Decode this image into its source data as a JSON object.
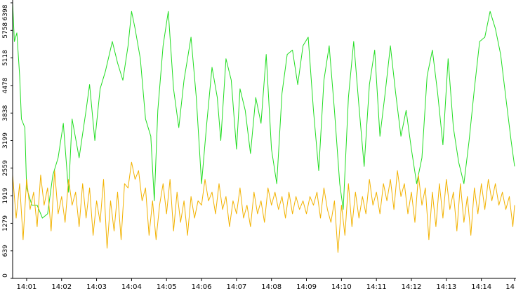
{
  "chart_data": {
    "type": "line",
    "title": "",
    "xlabel": "",
    "ylabel": "",
    "ylim": [
      0,
      6398
    ],
    "xlim_minutes": [
      0.6,
      14.95
    ],
    "grid": false,
    "legend": "none",
    "y_ticks": [
      "0",
      "639",
      "1279",
      "1919",
      "2559",
      "3199",
      "3838",
      "4478",
      "5118",
      "5758",
      "6398"
    ],
    "x_ticks": [
      {
        "t": 1,
        "label": "14:01"
      },
      {
        "t": 2,
        "label": "14:02"
      },
      {
        "t": 3,
        "label": "14:03"
      },
      {
        "t": 4,
        "label": "14:04"
      },
      {
        "t": 5,
        "label": "14:05"
      },
      {
        "t": 6,
        "label": "14:06"
      },
      {
        "t": 7,
        "label": "14:07"
      },
      {
        "t": 8,
        "label": "14:08"
      },
      {
        "t": 9,
        "label": "14:09"
      },
      {
        "t": 10,
        "label": "14:10"
      },
      {
        "t": 11,
        "label": "14:11"
      },
      {
        "t": 12,
        "label": "14:12"
      },
      {
        "t": 13,
        "label": "14:13"
      },
      {
        "t": 14,
        "label": "14:14"
      },
      {
        "t": 14.95,
        "label": "14"
      }
    ],
    "series": [
      {
        "color": "#22dd22",
        "values": [
          {
            "t": 0.6,
            "y": 6398
          },
          {
            "t": 0.65,
            "y": 5500
          },
          {
            "t": 0.72,
            "y": 5700
          },
          {
            "t": 0.8,
            "y": 4700
          },
          {
            "t": 0.85,
            "y": 3700
          },
          {
            "t": 0.95,
            "y": 3500
          },
          {
            "t": 1.0,
            "y": 2100
          },
          {
            "t": 1.15,
            "y": 1700
          },
          {
            "t": 1.3,
            "y": 1700
          },
          {
            "t": 1.45,
            "y": 1400
          },
          {
            "t": 1.6,
            "y": 1500
          },
          {
            "t": 1.75,
            "y": 2400
          },
          {
            "t": 1.9,
            "y": 2800
          },
          {
            "t": 2.05,
            "y": 3600
          },
          {
            "t": 2.2,
            "y": 2000
          },
          {
            "t": 2.3,
            "y": 3700
          },
          {
            "t": 2.5,
            "y": 2800
          },
          {
            "t": 2.7,
            "y": 3900
          },
          {
            "t": 2.8,
            "y": 4500
          },
          {
            "t": 2.95,
            "y": 3200
          },
          {
            "t": 3.1,
            "y": 4400
          },
          {
            "t": 3.25,
            "y": 4800
          },
          {
            "t": 3.45,
            "y": 5500
          },
          {
            "t": 3.6,
            "y": 5000
          },
          {
            "t": 3.75,
            "y": 4600
          },
          {
            "t": 3.9,
            "y": 5400
          },
          {
            "t": 4.0,
            "y": 6200
          },
          {
            "t": 4.1,
            "y": 5800
          },
          {
            "t": 4.25,
            "y": 5100
          },
          {
            "t": 4.4,
            "y": 3700
          },
          {
            "t": 4.55,
            "y": 3300
          },
          {
            "t": 4.65,
            "y": 1800
          },
          {
            "t": 4.75,
            "y": 3900
          },
          {
            "t": 4.9,
            "y": 5400
          },
          {
            "t": 5.05,
            "y": 6200
          },
          {
            "t": 5.2,
            "y": 4400
          },
          {
            "t": 5.35,
            "y": 3500
          },
          {
            "t": 5.5,
            "y": 4600
          },
          {
            "t": 5.7,
            "y": 5600
          },
          {
            "t": 5.85,
            "y": 4200
          },
          {
            "t": 6.0,
            "y": 2200
          },
          {
            "t": 6.15,
            "y": 3600
          },
          {
            "t": 6.3,
            "y": 4900
          },
          {
            "t": 6.45,
            "y": 4200
          },
          {
            "t": 6.55,
            "y": 3200
          },
          {
            "t": 6.7,
            "y": 5100
          },
          {
            "t": 6.85,
            "y": 4600
          },
          {
            "t": 7.0,
            "y": 3000
          },
          {
            "t": 7.1,
            "y": 4400
          },
          {
            "t": 7.25,
            "y": 3900
          },
          {
            "t": 7.4,
            "y": 2900
          },
          {
            "t": 7.55,
            "y": 4200
          },
          {
            "t": 7.7,
            "y": 3600
          },
          {
            "t": 7.85,
            "y": 5200
          },
          {
            "t": 8.0,
            "y": 3000
          },
          {
            "t": 8.15,
            "y": 2200
          },
          {
            "t": 8.3,
            "y": 4300
          },
          {
            "t": 8.45,
            "y": 5200
          },
          {
            "t": 8.6,
            "y": 5300
          },
          {
            "t": 8.75,
            "y": 4500
          },
          {
            "t": 8.9,
            "y": 5400
          },
          {
            "t": 9.05,
            "y": 5600
          },
          {
            "t": 9.2,
            "y": 3900
          },
          {
            "t": 9.35,
            "y": 2500
          },
          {
            "t": 9.5,
            "y": 4600
          },
          {
            "t": 9.65,
            "y": 5400
          },
          {
            "t": 9.8,
            "y": 3900
          },
          {
            "t": 9.95,
            "y": 2200
          },
          {
            "t": 10.05,
            "y": 1600
          },
          {
            "t": 10.2,
            "y": 4200
          },
          {
            "t": 10.35,
            "y": 5500
          },
          {
            "t": 10.5,
            "y": 4000
          },
          {
            "t": 10.65,
            "y": 2600
          },
          {
            "t": 10.8,
            "y": 4500
          },
          {
            "t": 10.95,
            "y": 5300
          },
          {
            "t": 11.1,
            "y": 3300
          },
          {
            "t": 11.25,
            "y": 4300
          },
          {
            "t": 11.4,
            "y": 5400
          },
          {
            "t": 11.55,
            "y": 4300
          },
          {
            "t": 11.7,
            "y": 3300
          },
          {
            "t": 11.85,
            "y": 3900
          },
          {
            "t": 12.0,
            "y": 3000
          },
          {
            "t": 12.15,
            "y": 2200
          },
          {
            "t": 12.3,
            "y": 2800
          },
          {
            "t": 12.45,
            "y": 4700
          },
          {
            "t": 12.6,
            "y": 5300
          },
          {
            "t": 12.75,
            "y": 4300
          },
          {
            "t": 12.9,
            "y": 3100
          },
          {
            "t": 13.05,
            "y": 5100
          },
          {
            "t": 13.2,
            "y": 3500
          },
          {
            "t": 13.35,
            "y": 2700
          },
          {
            "t": 13.5,
            "y": 2200
          },
          {
            "t": 13.65,
            "y": 3200
          },
          {
            "t": 13.8,
            "y": 4400
          },
          {
            "t": 13.95,
            "y": 5500
          },
          {
            "t": 14.1,
            "y": 5600
          },
          {
            "t": 14.25,
            "y": 6200
          },
          {
            "t": 14.4,
            "y": 5800
          },
          {
            "t": 14.55,
            "y": 5200
          },
          {
            "t": 14.7,
            "y": 4200
          },
          {
            "t": 14.85,
            "y": 3200
          },
          {
            "t": 14.95,
            "y": 2600
          }
        ]
      },
      {
        "color": "#f2b200",
        "values": [
          {
            "t": 0.6,
            "y": 2400
          },
          {
            "t": 0.7,
            "y": 1400
          },
          {
            "t": 0.8,
            "y": 2200
          },
          {
            "t": 0.9,
            "y": 900
          },
          {
            "t": 1.0,
            "y": 2300
          },
          {
            "t": 1.1,
            "y": 1600
          },
          {
            "t": 1.2,
            "y": 2000
          },
          {
            "t": 1.3,
            "y": 1200
          },
          {
            "t": 1.4,
            "y": 2400
          },
          {
            "t": 1.5,
            "y": 1700
          },
          {
            "t": 1.6,
            "y": 2100
          },
          {
            "t": 1.7,
            "y": 1100
          },
          {
            "t": 1.8,
            "y": 2500
          },
          {
            "t": 1.9,
            "y": 1500
          },
          {
            "t": 2.0,
            "y": 1900
          },
          {
            "t": 2.1,
            "y": 1300
          },
          {
            "t": 2.2,
            "y": 2300
          },
          {
            "t": 2.3,
            "y": 1700
          },
          {
            "t": 2.4,
            "y": 2000
          },
          {
            "t": 2.5,
            "y": 1200
          },
          {
            "t": 2.6,
            "y": 2200
          },
          {
            "t": 2.7,
            "y": 1400
          },
          {
            "t": 2.8,
            "y": 2100
          },
          {
            "t": 2.9,
            "y": 1000
          },
          {
            "t": 3.0,
            "y": 1800
          },
          {
            "t": 3.1,
            "y": 1300
          },
          {
            "t": 3.2,
            "y": 2300
          },
          {
            "t": 3.3,
            "y": 700
          },
          {
            "t": 3.4,
            "y": 1800
          },
          {
            "t": 3.5,
            "y": 1100
          },
          {
            "t": 3.6,
            "y": 2000
          },
          {
            "t": 3.7,
            "y": 900
          },
          {
            "t": 3.8,
            "y": 2200
          },
          {
            "t": 3.9,
            "y": 2100
          },
          {
            "t": 4.0,
            "y": 2700
          },
          {
            "t": 4.1,
            "y": 2300
          },
          {
            "t": 4.2,
            "y": 2500
          },
          {
            "t": 4.3,
            "y": 1800
          },
          {
            "t": 4.4,
            "y": 2100
          },
          {
            "t": 4.5,
            "y": 1000
          },
          {
            "t": 4.6,
            "y": 1800
          },
          {
            "t": 4.7,
            "y": 900
          },
          {
            "t": 4.8,
            "y": 1700
          },
          {
            "t": 4.9,
            "y": 2200
          },
          {
            "t": 5.0,
            "y": 1500
          },
          {
            "t": 5.1,
            "y": 2300
          },
          {
            "t": 5.2,
            "y": 1100
          },
          {
            "t": 5.3,
            "y": 2000
          },
          {
            "t": 5.4,
            "y": 1300
          },
          {
            "t": 5.5,
            "y": 1800
          },
          {
            "t": 5.6,
            "y": 1000
          },
          {
            "t": 5.7,
            "y": 1900
          },
          {
            "t": 5.8,
            "y": 1400
          },
          {
            "t": 5.9,
            "y": 1800
          },
          {
            "t": 6.0,
            "y": 1700
          },
          {
            "t": 6.1,
            "y": 2300
          },
          {
            "t": 6.2,
            "y": 1800
          },
          {
            "t": 6.3,
            "y": 2000
          },
          {
            "t": 6.4,
            "y": 1500
          },
          {
            "t": 6.5,
            "y": 2200
          },
          {
            "t": 6.6,
            "y": 1600
          },
          {
            "t": 6.7,
            "y": 1900
          },
          {
            "t": 6.8,
            "y": 1200
          },
          {
            "t": 6.9,
            "y": 1800
          },
          {
            "t": 7.0,
            "y": 1500
          },
          {
            "t": 7.1,
            "y": 2100
          },
          {
            "t": 7.2,
            "y": 1400
          },
          {
            "t": 7.3,
            "y": 1700
          },
          {
            "t": 7.4,
            "y": 1200
          },
          {
            "t": 7.5,
            "y": 2000
          },
          {
            "t": 7.6,
            "y": 1500
          },
          {
            "t": 7.7,
            "y": 1800
          },
          {
            "t": 7.8,
            "y": 1300
          },
          {
            "t": 7.9,
            "y": 2100
          },
          {
            "t": 8.0,
            "y": 1700
          },
          {
            "t": 8.1,
            "y": 2000
          },
          {
            "t": 8.2,
            "y": 1600
          },
          {
            "t": 8.3,
            "y": 1900
          },
          {
            "t": 8.4,
            "y": 1400
          },
          {
            "t": 8.5,
            "y": 2000
          },
          {
            "t": 8.6,
            "y": 1500
          },
          {
            "t": 8.7,
            "y": 1900
          },
          {
            "t": 8.8,
            "y": 1600
          },
          {
            "t": 8.9,
            "y": 1800
          },
          {
            "t": 9.0,
            "y": 1500
          },
          {
            "t": 9.1,
            "y": 1900
          },
          {
            "t": 9.2,
            "y": 1700
          },
          {
            "t": 9.3,
            "y": 2000
          },
          {
            "t": 9.4,
            "y": 1400
          },
          {
            "t": 9.5,
            "y": 2100
          },
          {
            "t": 9.6,
            "y": 1600
          },
          {
            "t": 9.7,
            "y": 1300
          },
          {
            "t": 9.8,
            "y": 1800
          },
          {
            "t": 9.9,
            "y": 600
          },
          {
            "t": 10.0,
            "y": 1700
          },
          {
            "t": 10.1,
            "y": 1000
          },
          {
            "t": 10.2,
            "y": 2200
          },
          {
            "t": 10.3,
            "y": 1200
          },
          {
            "t": 10.4,
            "y": 2000
          },
          {
            "t": 10.5,
            "y": 1400
          },
          {
            "t": 10.6,
            "y": 1900
          },
          {
            "t": 10.7,
            "y": 1500
          },
          {
            "t": 10.8,
            "y": 2300
          },
          {
            "t": 10.9,
            "y": 1700
          },
          {
            "t": 11.0,
            "y": 2000
          },
          {
            "t": 11.1,
            "y": 1500
          },
          {
            "t": 11.2,
            "y": 2200
          },
          {
            "t": 11.3,
            "y": 1800
          },
          {
            "t": 11.4,
            "y": 2300
          },
          {
            "t": 11.5,
            "y": 1600
          },
          {
            "t": 11.6,
            "y": 2500
          },
          {
            "t": 11.7,
            "y": 1900
          },
          {
            "t": 11.8,
            "y": 2200
          },
          {
            "t": 11.9,
            "y": 1500
          },
          {
            "t": 12.0,
            "y": 2000
          },
          {
            "t": 12.1,
            "y": 1300
          },
          {
            "t": 12.2,
            "y": 2400
          },
          {
            "t": 12.3,
            "y": 1700
          },
          {
            "t": 12.4,
            "y": 2100
          },
          {
            "t": 12.5,
            "y": 900
          },
          {
            "t": 12.6,
            "y": 2000
          },
          {
            "t": 12.7,
            "y": 1200
          },
          {
            "t": 12.8,
            "y": 2200
          },
          {
            "t": 12.9,
            "y": 1400
          },
          {
            "t": 13.0,
            "y": 2300
          },
          {
            "t": 13.1,
            "y": 1600
          },
          {
            "t": 13.2,
            "y": 2000
          },
          {
            "t": 13.3,
            "y": 1100
          },
          {
            "t": 13.4,
            "y": 2200
          },
          {
            "t": 13.5,
            "y": 1300
          },
          {
            "t": 13.6,
            "y": 1900
          },
          {
            "t": 13.7,
            "y": 1000
          },
          {
            "t": 13.8,
            "y": 2100
          },
          {
            "t": 13.9,
            "y": 1500
          },
          {
            "t": 14.0,
            "y": 2200
          },
          {
            "t": 14.1,
            "y": 1600
          },
          {
            "t": 14.2,
            "y": 2300
          },
          {
            "t": 14.3,
            "y": 1800
          },
          {
            "t": 14.4,
            "y": 2200
          },
          {
            "t": 14.5,
            "y": 1700
          },
          {
            "t": 14.6,
            "y": 2000
          },
          {
            "t": 14.7,
            "y": 1600
          },
          {
            "t": 14.8,
            "y": 1900
          },
          {
            "t": 14.9,
            "y": 1200
          },
          {
            "t": 14.95,
            "y": 1700
          }
        ]
      }
    ]
  }
}
